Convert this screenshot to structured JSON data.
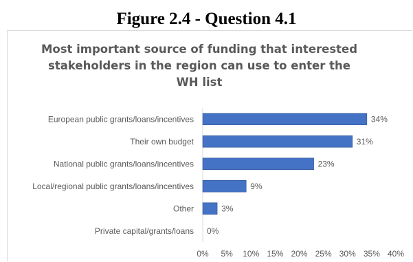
{
  "figure_title": "Figure 2.4 - Question 4.1",
  "chart_data": {
    "type": "bar",
    "orientation": "horizontal",
    "title": "Most important source of funding that interested stakeholders in the region can use to enter the WH list",
    "title_lines": [
      "Most important source of funding that interested",
      "stakeholders in the region can use to enter the",
      "WH list"
    ],
    "categories": [
      "European public grants/loans/incentives",
      "Their own budget",
      "National public grants/loans/incentives",
      "Local/regional public grants/loans/incentives",
      "Other",
      "Private capital/grants/loans"
    ],
    "values": [
      34,
      31,
      23,
      9,
      3,
      0
    ],
    "value_labels": [
      "34%",
      "31%",
      "23%",
      "9%",
      "3%",
      "0%"
    ],
    "x_ticks": [
      "0%",
      "5%",
      "10%",
      "15%",
      "20%",
      "25%",
      "30%",
      "35%",
      "40%"
    ],
    "xlim": [
      0,
      40
    ],
    "grid": false,
    "bar_color": "#4472c4"
  }
}
